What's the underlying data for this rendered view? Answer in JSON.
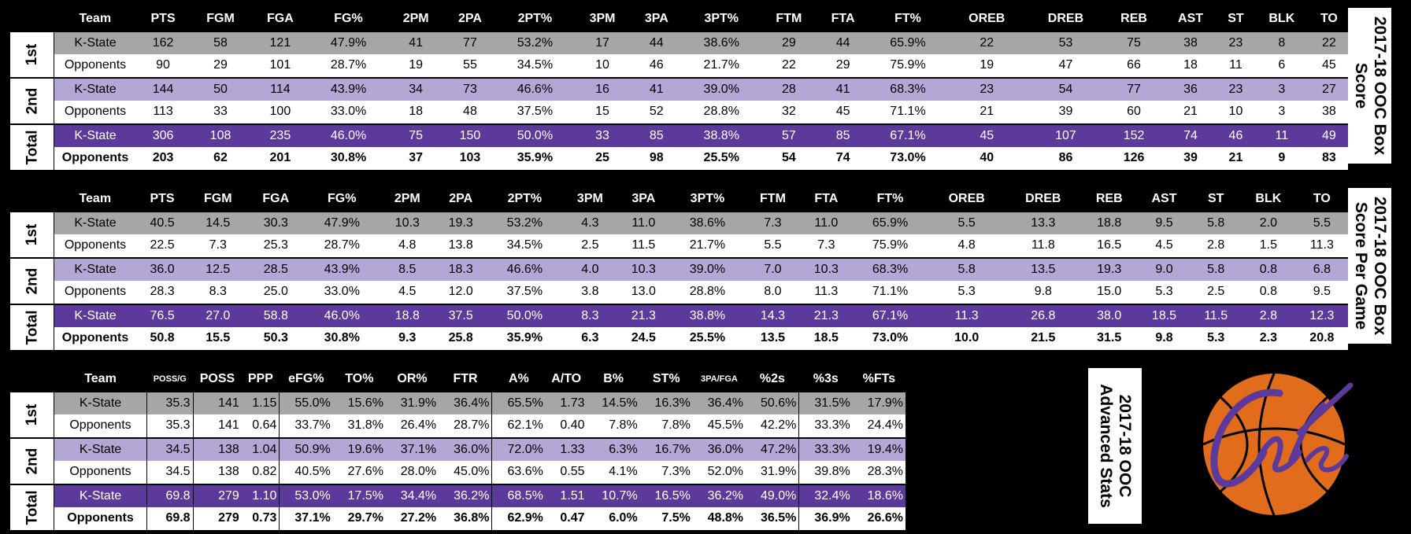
{
  "tables": [
    {
      "title_lines": [
        "2017-18 OOC Box",
        "Score"
      ],
      "headers": [
        "Team",
        "PTS",
        "FGM",
        "FGA",
        "FG%",
        "2PM",
        "2PA",
        "2PT%",
        "3PM",
        "3PA",
        "3PT%",
        "FTM",
        "FTA",
        "FT%",
        "OREB",
        "DREB",
        "REB",
        "AST",
        "ST",
        "BLK",
        "TO"
      ],
      "sections": [
        {
          "period": "1st",
          "rows": [
            {
              "team": "K-State",
              "values": [
                "162",
                "58",
                "121",
                "47.9%",
                "41",
                "77",
                "53.2%",
                "17",
                "44",
                "38.6%",
                "29",
                "44",
                "65.9%",
                "22",
                "53",
                "75",
                "38",
                "23",
                "8",
                "22"
              ]
            },
            {
              "team": "Opponents",
              "values": [
                "90",
                "29",
                "101",
                "28.7%",
                "19",
                "55",
                "34.5%",
                "10",
                "46",
                "21.7%",
                "22",
                "29",
                "75.9%",
                "19",
                "47",
                "66",
                "18",
                "11",
                "6",
                "45"
              ]
            }
          ]
        },
        {
          "period": "2nd",
          "rows": [
            {
              "team": "K-State",
              "values": [
                "144",
                "50",
                "114",
                "43.9%",
                "34",
                "73",
                "46.6%",
                "16",
                "41",
                "39.0%",
                "28",
                "41",
                "68.3%",
                "23",
                "54",
                "77",
                "36",
                "23",
                "3",
                "27"
              ]
            },
            {
              "team": "Opponents",
              "values": [
                "113",
                "33",
                "100",
                "33.0%",
                "18",
                "48",
                "37.5%",
                "15",
                "52",
                "28.8%",
                "32",
                "45",
                "71.1%",
                "21",
                "39",
                "60",
                "21",
                "10",
                "3",
                "38"
              ]
            }
          ]
        },
        {
          "period": "Total",
          "rows": [
            {
              "team": "K-State",
              "values": [
                "306",
                "108",
                "235",
                "46.0%",
                "75",
                "150",
                "50.0%",
                "33",
                "85",
                "38.8%",
                "57",
                "85",
                "67.1%",
                "45",
                "107",
                "152",
                "74",
                "46",
                "11",
                "49"
              ]
            },
            {
              "team": "Opponents",
              "values": [
                "203",
                "62",
                "201",
                "30.8%",
                "37",
                "103",
                "35.9%",
                "25",
                "98",
                "25.5%",
                "54",
                "74",
                "73.0%",
                "40",
                "86",
                "126",
                "39",
                "21",
                "9",
                "83"
              ]
            }
          ]
        }
      ]
    },
    {
      "title_lines": [
        "2017-18 OOC Box",
        "Score Per Game"
      ],
      "headers": [
        "Team",
        "PTS",
        "FGM",
        "FGA",
        "FG%",
        "2PM",
        "2PA",
        "2PT%",
        "3PM",
        "3PA",
        "3PT%",
        "FTM",
        "FTA",
        "FT%",
        "OREB",
        "DREB",
        "REB",
        "AST",
        "ST",
        "BLK",
        "TO"
      ],
      "sections": [
        {
          "period": "1st",
          "rows": [
            {
              "team": "K-State",
              "values": [
                "40.5",
                "14.5",
                "30.3",
                "47.9%",
                "10.3",
                "19.3",
                "53.2%",
                "4.3",
                "11.0",
                "38.6%",
                "7.3",
                "11.0",
                "65.9%",
                "5.5",
                "13.3",
                "18.8",
                "9.5",
                "5.8",
                "2.0",
                "5.5"
              ]
            },
            {
              "team": "Opponents",
              "values": [
                "22.5",
                "7.3",
                "25.3",
                "28.7%",
                "4.8",
                "13.8",
                "34.5%",
                "2.5",
                "11.5",
                "21.7%",
                "5.5",
                "7.3",
                "75.9%",
                "4.8",
                "11.8",
                "16.5",
                "4.5",
                "2.8",
                "1.5",
                "11.3"
              ]
            }
          ]
        },
        {
          "period": "2nd",
          "rows": [
            {
              "team": "K-State",
              "values": [
                "36.0",
                "12.5",
                "28.5",
                "43.9%",
                "8.5",
                "18.3",
                "46.6%",
                "4.0",
                "10.3",
                "39.0%",
                "7.0",
                "10.3",
                "68.3%",
                "5.8",
                "13.5",
                "19.3",
                "9.0",
                "5.8",
                "0.8",
                "6.8"
              ]
            },
            {
              "team": "Opponents",
              "values": [
                "28.3",
                "8.3",
                "25.0",
                "33.0%",
                "4.5",
                "12.0",
                "37.5%",
                "3.8",
                "13.0",
                "28.8%",
                "8.0",
                "11.3",
                "71.1%",
                "5.3",
                "9.8",
                "15.0",
                "5.3",
                "2.5",
                "0.8",
                "9.5"
              ]
            }
          ]
        },
        {
          "period": "Total",
          "rows": [
            {
              "team": "K-State",
              "values": [
                "76.5",
                "27.0",
                "58.8",
                "46.0%",
                "18.8",
                "37.5",
                "50.0%",
                "8.3",
                "21.3",
                "38.8%",
                "14.3",
                "21.3",
                "67.1%",
                "11.3",
                "26.8",
                "38.0",
                "18.5",
                "11.5",
                "2.8",
                "12.3"
              ]
            },
            {
              "team": "Opponents",
              "values": [
                "50.8",
                "15.5",
                "50.3",
                "30.8%",
                "9.3",
                "25.8",
                "35.9%",
                "6.3",
                "24.5",
                "25.5%",
                "13.5",
                "18.5",
                "73.0%",
                "10.0",
                "21.5",
                "31.5",
                "9.8",
                "5.3",
                "2.3",
                "20.8"
              ]
            }
          ]
        }
      ]
    },
    {
      "title_lines": [
        "2017-18 OOC",
        "Advanced Stats"
      ],
      "headers": [
        "Team",
        "POSS/G",
        "POSS",
        "PPP",
        "eFG%",
        "TO%",
        "OR%",
        "FTR",
        "A%",
        "A/TO",
        "B%",
        "ST%",
        "3PA/FGA",
        "%2s",
        "%3s",
        "%FTs"
      ],
      "sections": [
        {
          "period": "1st",
          "rows": [
            {
              "team": "K-State",
              "values": [
                "35.3",
                "141",
                "1.15",
                "55.0%",
                "15.6%",
                "31.9%",
                "36.4%",
                "65.5%",
                "1.73",
                "14.5%",
                "16.3%",
                "36.4%",
                "50.6%",
                "31.5%",
                "17.9%"
              ]
            },
            {
              "team": "Opponents",
              "values": [
                "35.3",
                "141",
                "0.64",
                "33.7%",
                "31.8%",
                "26.4%",
                "28.7%",
                "62.1%",
                "0.40",
                "7.8%",
                "7.8%",
                "45.5%",
                "42.2%",
                "33.3%",
                "24.4%"
              ]
            }
          ]
        },
        {
          "period": "2nd",
          "rows": [
            {
              "team": "K-State",
              "values": [
                "34.5",
                "138",
                "1.04",
                "50.9%",
                "19.6%",
                "37.1%",
                "36.0%",
                "72.0%",
                "1.33",
                "6.3%",
                "16.7%",
                "36.0%",
                "47.2%",
                "33.3%",
                "19.4%"
              ]
            },
            {
              "team": "Opponents",
              "values": [
                "34.5",
                "138",
                "0.82",
                "40.5%",
                "27.6%",
                "28.0%",
                "45.0%",
                "63.6%",
                "0.55",
                "4.1%",
                "7.3%",
                "52.0%",
                "31.9%",
                "39.8%",
                "28.3%"
              ]
            }
          ]
        },
        {
          "period": "Total",
          "rows": [
            {
              "team": "K-State",
              "values": [
                "69.8",
                "279",
                "1.10",
                "53.0%",
                "17.5%",
                "34.4%",
                "36.2%",
                "68.5%",
                "1.51",
                "10.7%",
                "16.5%",
                "36.2%",
                "49.0%",
                "32.4%",
                "18.6%"
              ]
            },
            {
              "team": "Opponents",
              "values": [
                "69.8",
                "279",
                "0.73",
                "37.1%",
                "29.7%",
                "27.2%",
                "36.8%",
                "62.9%",
                "0.47",
                "6.0%",
                "7.5%",
                "48.8%",
                "36.5%",
                "36.9%",
                "26.6%"
              ]
            }
          ]
        }
      ]
    }
  ],
  "logo": {
    "text": "Cats",
    "ball_color": "#e06c1c",
    "script_color": "#5b3a9b"
  },
  "colors": {
    "gray": "#a6a6a6",
    "lavender": "#b4a7d6",
    "purple": "#5b3a9b",
    "white": "#ffffff",
    "background": "#000000"
  }
}
